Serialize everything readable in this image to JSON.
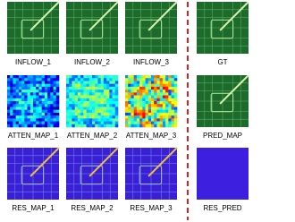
{
  "rows": [
    [
      "INFLOW_1",
      "INFLOW_2",
      "INFLOW_3",
      "GT"
    ],
    [
      "ATTEN_MAP_1",
      "ATTEN_MAP_2",
      "ATTEN_MAP_3",
      "PRED_MAP"
    ],
    [
      "RES_MAP_1",
      "RES_MAP_2",
      "RES_MAP_3",
      "RES_PRED"
    ]
  ]
}
